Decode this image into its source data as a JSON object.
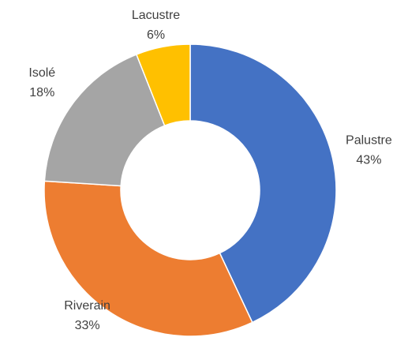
{
  "chart_data": {
    "type": "donut",
    "categories": [
      "Palustre",
      "Riverain",
      "Isolé",
      "Lacustre"
    ],
    "values": [
      43,
      33,
      18,
      6
    ],
    "value_labels": [
      "43%",
      "33%",
      "18%",
      "6%"
    ],
    "colors": [
      "#4472c4",
      "#ed7d31",
      "#a5a5a5",
      "#ffc000"
    ]
  }
}
